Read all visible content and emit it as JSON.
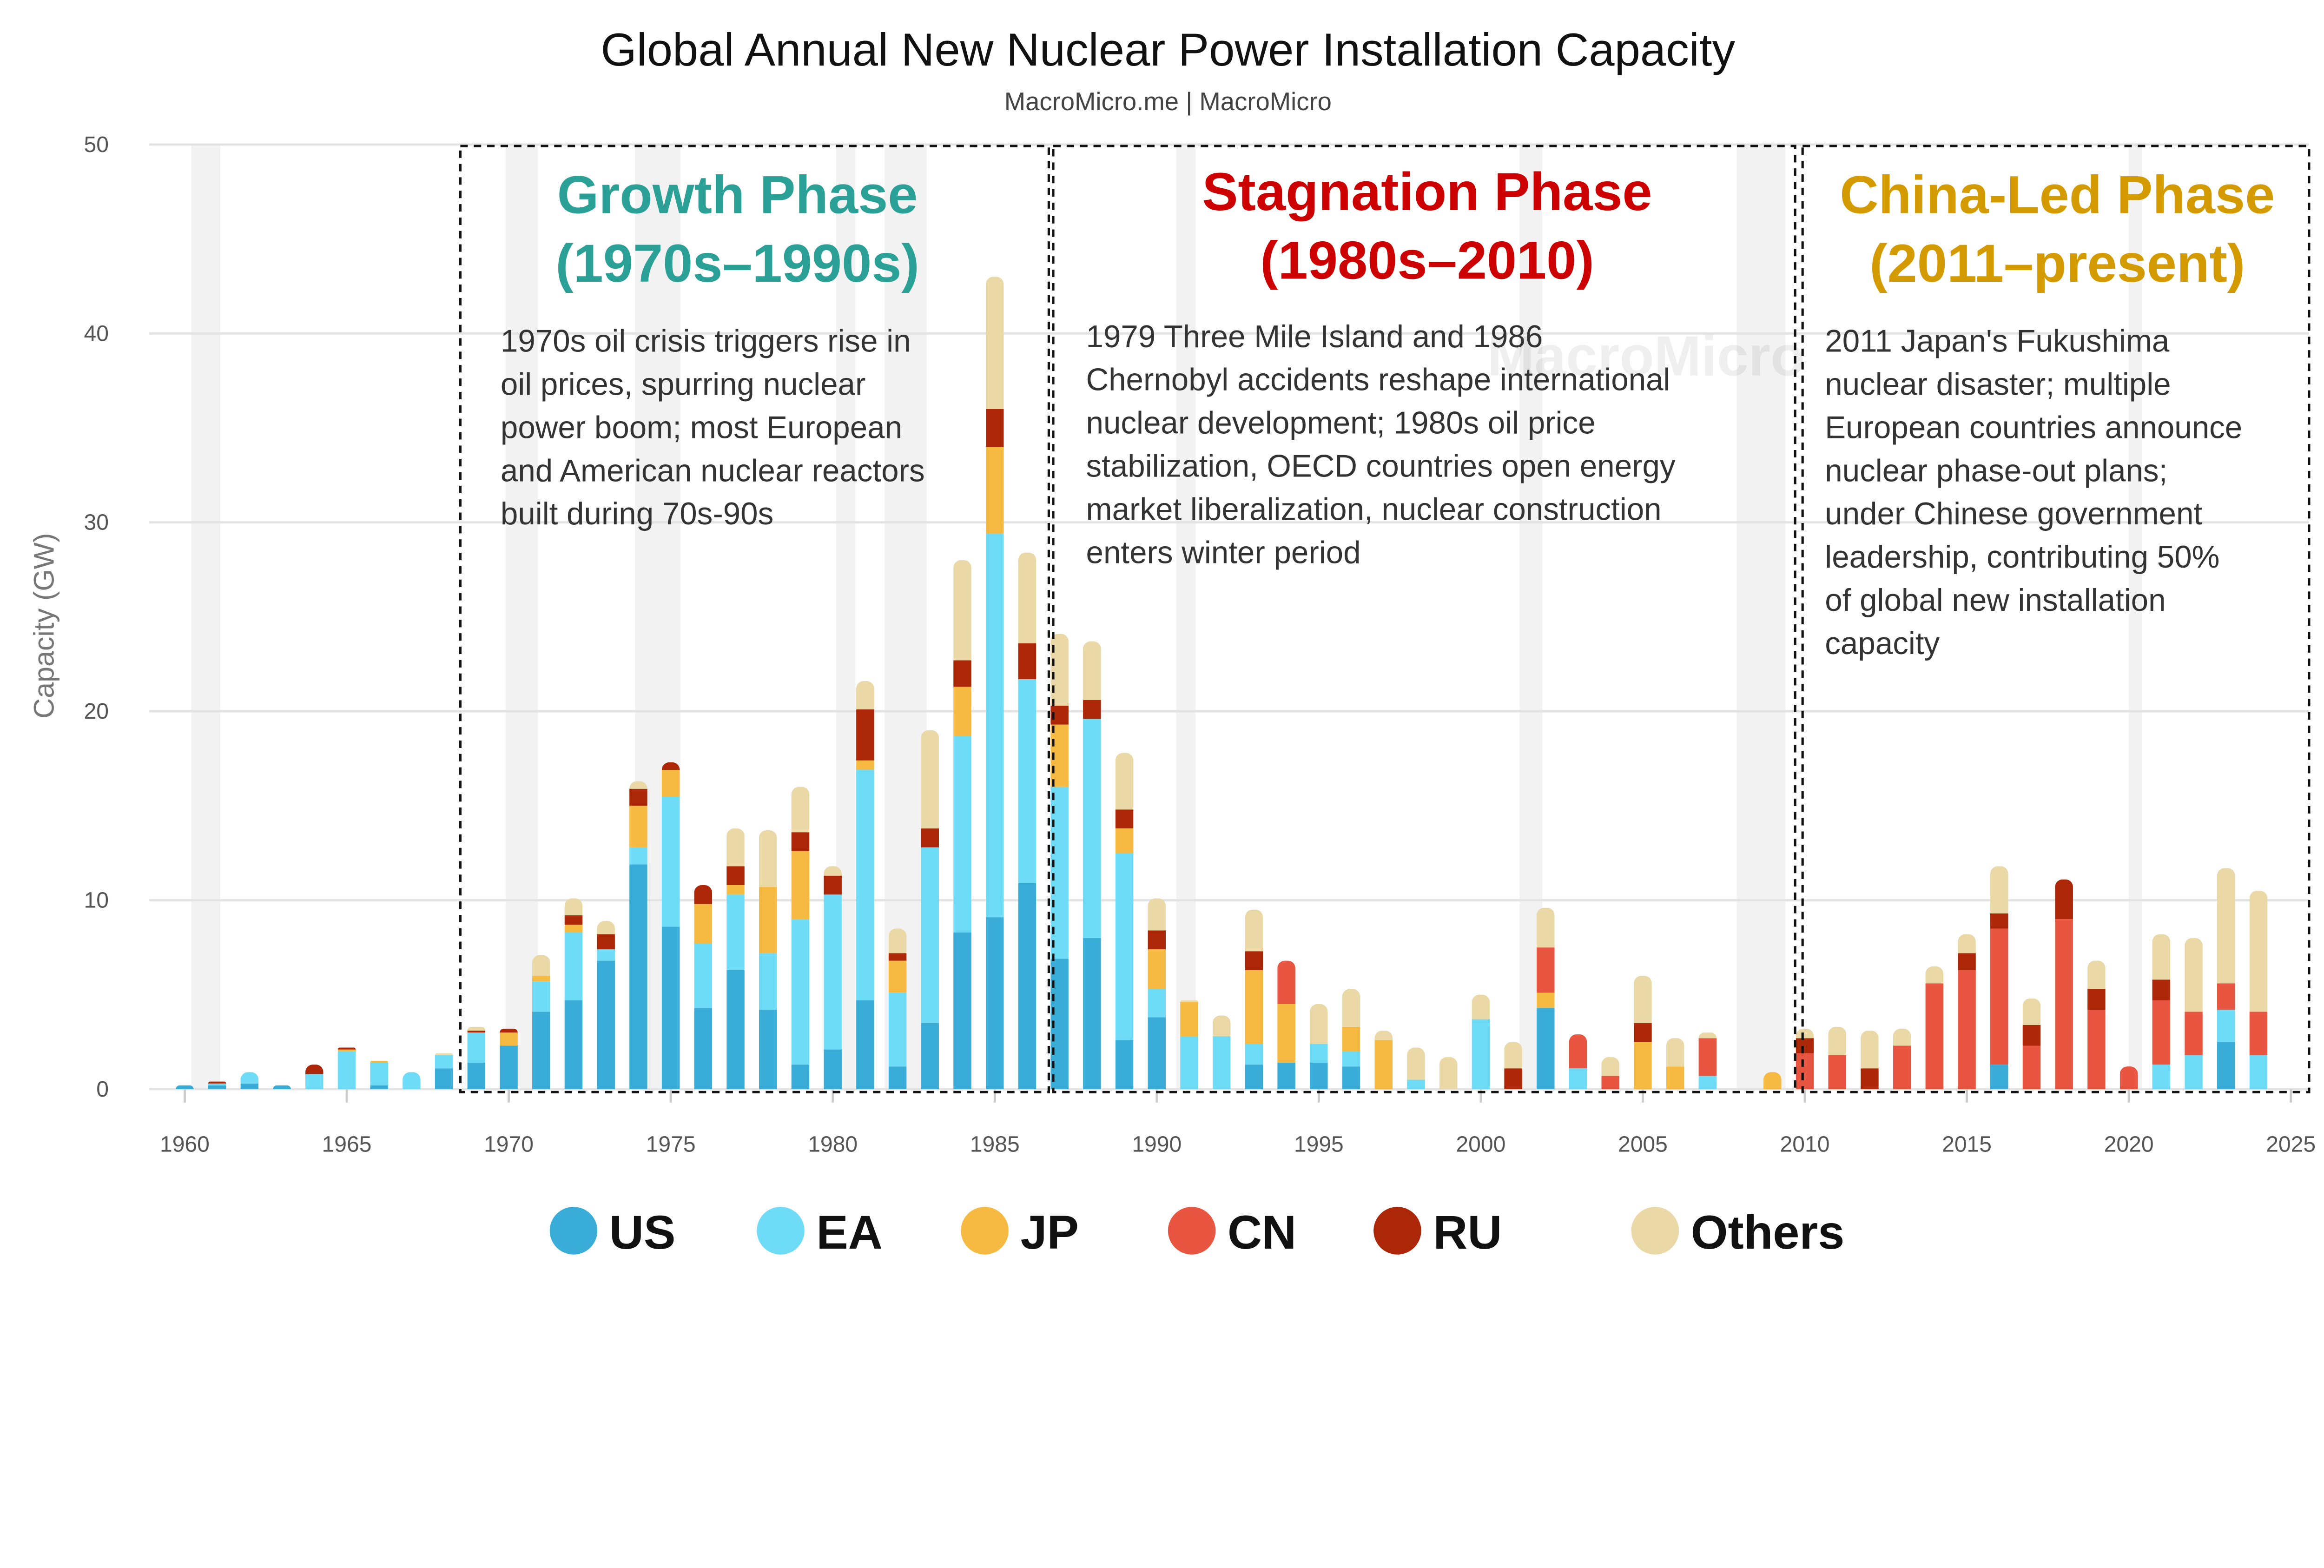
{
  "chart_data": {
    "type": "bar",
    "stacked": true,
    "title": "Global Annual New Nuclear Power Installation Capacity",
    "subtitle": "MacroMicro.me | MacroMicro",
    "watermark": "MacroMicro",
    "ylabel": "Capacity (GW)",
    "xlabel": "",
    "ylim": [
      0,
      50
    ],
    "yticks": [
      0,
      10,
      20,
      30,
      40,
      50
    ],
    "xlim": [
      1959.5,
      2025
    ],
    "xticks": [
      1960,
      1965,
      1970,
      1975,
      1980,
      1985,
      1990,
      1995,
      2000,
      2005,
      2010,
      2015,
      2020,
      2025
    ],
    "grid": true,
    "legend_position": "bottom",
    "shaded_periods": [
      [
        1960.2,
        1961.1
      ],
      [
        1969.9,
        1970.9
      ],
      [
        1973.9,
        1975.3
      ],
      [
        1980.1,
        1980.7
      ],
      [
        1981.6,
        1982.9
      ],
      [
        1990.6,
        1991.2
      ],
      [
        2001.2,
        2001.9
      ],
      [
        2007.9,
        2009.4
      ],
      [
        2020.0,
        2020.4
      ]
    ],
    "categories": [
      1960,
      1961,
      1962,
      1963,
      1964,
      1965,
      1966,
      1967,
      1968,
      1969,
      1970,
      1971,
      1972,
      1973,
      1974,
      1975,
      1976,
      1977,
      1978,
      1979,
      1980,
      1981,
      1982,
      1983,
      1984,
      1985,
      1986,
      1987,
      1988,
      1989,
      1990,
      1991,
      1992,
      1993,
      1994,
      1995,
      1996,
      1997,
      1998,
      1999,
      2000,
      2001,
      2002,
      2003,
      2004,
      2005,
      2006,
      2007,
      2008,
      2009,
      2010,
      2011,
      2012,
      2013,
      2014,
      2015,
      2016,
      2017,
      2018,
      2019,
      2020,
      2021,
      2022,
      2023,
      2024
    ],
    "series": [
      {
        "name": "US",
        "color": "#3aacd8",
        "values": [
          0.2,
          0.2,
          0.3,
          0.2,
          0,
          0,
          0.2,
          0,
          1.1,
          1.4,
          2.3,
          4.1,
          4.7,
          6.8,
          11.9,
          8.6,
          4.3,
          6.3,
          4.2,
          1.3,
          2.1,
          4.7,
          1.2,
          3.5,
          8.3,
          9.1,
          10.9,
          6.9,
          8.0,
          2.6,
          3.8,
          0,
          0,
          1.3,
          1.4,
          1.4,
          1.2,
          0,
          0,
          0,
          0,
          0,
          4.3,
          0,
          0,
          0,
          0,
          0,
          0,
          0,
          0,
          0,
          0,
          0,
          0,
          0,
          1.3,
          0,
          0,
          0,
          0,
          0,
          0,
          2.5,
          0
        ]
      },
      {
        "name": "EA",
        "color": "#6fdcf7",
        "values": [
          0,
          0.1,
          0.6,
          0,
          0.8,
          2.0,
          1.2,
          0.9,
          0.7,
          1.6,
          0,
          1.6,
          3.6,
          0.6,
          0.9,
          6.9,
          3.4,
          4.0,
          3.0,
          7.7,
          8.2,
          12.2,
          3.9,
          9.3,
          10.4,
          20.3,
          10.8,
          9.1,
          11.6,
          9.9,
          1.5,
          2.8,
          2.8,
          1.1,
          0,
          1.0,
          0.8,
          0,
          0.5,
          0,
          3.7,
          0,
          0,
          1.1,
          0,
          0,
          0,
          0.7,
          0,
          0,
          0,
          0,
          0,
          0,
          0,
          0,
          0,
          0,
          0,
          0,
          0,
          1.3,
          1.8,
          1.7,
          1.8
        ]
      },
      {
        "name": "JP",
        "color": "#f6b942",
        "values": [
          0,
          0,
          0,
          0,
          0,
          0.1,
          0.1,
          0,
          0,
          0,
          0.7,
          0.3,
          0.4,
          0,
          2.2,
          1.4,
          2.1,
          0.5,
          3.5,
          3.6,
          0,
          0.5,
          1.7,
          0,
          2.6,
          4.6,
          0,
          3.3,
          0,
          1.3,
          2.1,
          1.8,
          0,
          3.9,
          3.1,
          0,
          1.3,
          2.6,
          0,
          0,
          0,
          0,
          0.8,
          0,
          0,
          2.5,
          1.2,
          0,
          0,
          0.9,
          0,
          0,
          0,
          0,
          0,
          0,
          0,
          0,
          0,
          0,
          0,
          0,
          0,
          0,
          0
        ]
      },
      {
        "name": "CN",
        "color": "#e85541",
        "values": [
          0,
          0,
          0,
          0,
          0,
          0,
          0,
          0,
          0,
          0,
          0,
          0,
          0,
          0,
          0,
          0,
          0,
          0,
          0,
          0,
          0,
          0,
          0,
          0,
          0,
          0,
          0,
          0,
          0,
          0,
          0,
          0,
          0,
          0,
          2.3,
          0,
          0,
          0,
          0,
          0,
          0,
          0,
          2.4,
          1.8,
          0.7,
          0,
          0,
          2.0,
          0,
          0,
          1.9,
          1.8,
          0,
          2.3,
          5.6,
          6.3,
          7.2,
          2.3,
          9.0,
          4.2,
          1.2,
          3.4,
          2.3,
          1.4,
          2.3
        ]
      },
      {
        "name": "RU",
        "color": "#ab2707",
        "values": [
          0,
          0.1,
          0,
          0,
          0.5,
          0.1,
          0,
          0,
          0,
          0.1,
          0.2,
          0,
          0.5,
          0.8,
          0.9,
          0.4,
          1.0,
          1.0,
          0,
          1.0,
          1.0,
          2.7,
          0.4,
          1.0,
          1.4,
          2.0,
          1.9,
          1.0,
          1.0,
          1.0,
          1.0,
          0,
          0,
          1.0,
          0,
          0,
          0,
          0,
          0,
          0,
          0,
          1.1,
          0,
          0,
          0,
          1.0,
          0,
          0,
          0,
          0,
          0.8,
          0,
          1.1,
          0,
          0,
          0.9,
          0.8,
          1.1,
          2.1,
          1.1,
          0,
          1.1,
          0,
          0,
          0
        ]
      },
      {
        "name": "Others",
        "color": "#ead8a6",
        "values": [
          0,
          0,
          0,
          0,
          0,
          0,
          0,
          0,
          0.1,
          0.2,
          0,
          1.1,
          0.9,
          0.7,
          0.4,
          0,
          0,
          2.0,
          3.0,
          2.4,
          0.5,
          1.5,
          1.3,
          5.2,
          5.3,
          7.0,
          4.8,
          3.8,
          3.1,
          3.0,
          1.7,
          0.1,
          1.1,
          2.2,
          0,
          2.1,
          2.0,
          0.5,
          1.7,
          1.7,
          1.3,
          1.4,
          2.1,
          0,
          1.0,
          2.5,
          1.5,
          0.3,
          0,
          0,
          0.5,
          1.5,
          2.0,
          0.9,
          0.9,
          1.0,
          2.5,
          1.4,
          0,
          1.5,
          0,
          2.4,
          3.9,
          6.1,
          6.4
        ]
      }
    ],
    "annotations": [
      {
        "title": [
          "Growth Phase",
          "(1970s–1990s)"
        ],
        "color": "#2aa096",
        "span": [
          1969,
          1986
        ],
        "text": [
          "1970s oil crisis triggers rise in",
          "oil prices, spurring nuclear",
          "power boom; most European",
          "and American nuclear reactors",
          "built during 70s-90s"
        ]
      },
      {
        "title": [
          "Stagnation Phase",
          "(1980s–2010)"
        ],
        "color": "#cc0000",
        "span": [
          1987,
          2009
        ],
        "text": [
          "1979 Three Mile Island and 1986",
          "Chernobyl accidents reshape international",
          "nuclear development; 1980s oil price",
          "stabilization, OECD countries open energy",
          "market liberalization, nuclear construction",
          "enters winter period"
        ]
      },
      {
        "title": [
          "China-Led Phase",
          "(2011–present)"
        ],
        "color": "#d49b00",
        "span": [
          2010,
          2025
        ],
        "text": [
          "2011 Japan's Fukushima",
          "nuclear disaster; multiple",
          "European countries announce",
          "nuclear phase-out plans;",
          "under Chinese government",
          "leadership, contributing 50%",
          "of global new installation",
          "capacity"
        ]
      }
    ]
  }
}
